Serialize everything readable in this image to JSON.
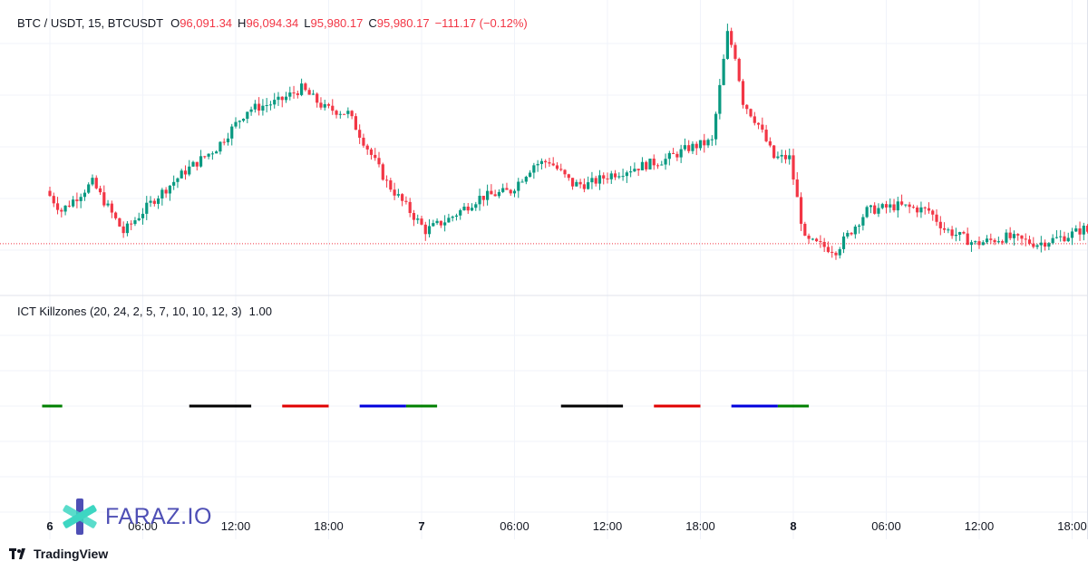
{
  "symbol_line": "BTC / USDT, 15, BTCUSDT",
  "ohlc": {
    "o_label": "O",
    "o": "96,091.34",
    "h_label": "H",
    "h": "96,094.34",
    "l_label": "L",
    "l": "95,980.17",
    "c_label": "C",
    "c": "95,980.17",
    "change": "−111.17 (−0.12%)"
  },
  "indicator": {
    "label": "ICT Killzones (20, 24, 2, 5, 7, 10, 10, 12, 3)",
    "value": "1.00"
  },
  "watermark": "FARAZ.IO",
  "branding": "TradingView",
  "colors": {
    "up": "#089981",
    "down": "#f23645",
    "grid": "#f0f3fa",
    "last_price_line": "#f23645"
  },
  "chart_data": [
    {
      "type": "candlestick",
      "interval": "15",
      "x_axis": {
        "labels": [
          {
            "text": "6",
            "bold": true,
            "hour_index": 0
          },
          {
            "text": "06:00",
            "bold": false,
            "hour_index": 6
          },
          {
            "text": "12:00",
            "bold": false,
            "hour_index": 12
          },
          {
            "text": "18:00",
            "bold": false,
            "hour_index": 18
          },
          {
            "text": "7",
            "bold": true,
            "hour_index": 24
          },
          {
            "text": "06:00",
            "bold": false,
            "hour_index": 30
          },
          {
            "text": "12:00",
            "bold": false,
            "hour_index": 36
          },
          {
            "text": "18:00",
            "bold": false,
            "hour_index": 42
          },
          {
            "text": "8",
            "bold": true,
            "hour_index": 48
          },
          {
            "text": "06:00",
            "bold": false,
            "hour_index": 54
          },
          {
            "text": "12:00",
            "bold": false,
            "hour_index": 60
          },
          {
            "text": "18:00",
            "bold": false,
            "hour_index": 66
          }
        ]
      },
      "y_range": [
        95700,
        97400
      ],
      "last_price": 95980.17,
      "path_keypoints": [
        [
          0,
          96300
        ],
        [
          1,
          96180
        ],
        [
          3,
          96350
        ],
        [
          5,
          96050
        ],
        [
          7,
          96250
        ],
        [
          9,
          96420
        ],
        [
          11,
          96560
        ],
        [
          13,
          96790
        ],
        [
          15,
          96840
        ],
        [
          16.5,
          96920
        ],
        [
          18,
          96800
        ],
        [
          19.5,
          96770
        ],
        [
          22,
          96350
        ],
        [
          24.5,
          96060
        ],
        [
          26,
          96130
        ],
        [
          28,
          96260
        ],
        [
          30,
          96300
        ],
        [
          31.5,
          96460
        ],
        [
          32.5,
          96480
        ],
        [
          34,
          96340
        ],
        [
          35,
          96340
        ],
        [
          36.5,
          96400
        ],
        [
          38,
          96440
        ],
        [
          40,
          96490
        ],
        [
          41.5,
          96560
        ],
        [
          43,
          96600
        ],
        [
          44,
          97250
        ],
        [
          44.5,
          97120
        ],
        [
          45,
          96840
        ],
        [
          46,
          96700
        ],
        [
          47,
          96500
        ],
        [
          48,
          96500
        ],
        [
          49,
          96000
        ],
        [
          51,
          95940
        ],
        [
          53,
          96180
        ],
        [
          55,
          96210
        ],
        [
          57,
          96180
        ],
        [
          58,
          96070
        ],
        [
          60,
          95980
        ],
        [
          62,
          96020
        ],
        [
          64,
          95980
        ],
        [
          66,
          96030
        ],
        [
          67,
          96070
        ],
        [
          68.5,
          95980
        ]
      ]
    },
    {
      "type": "line-segments",
      "name": "ICT Killzones",
      "level": 1.0,
      "segments": [
        {
          "start_hour": -0.5,
          "end_hour": 0.8,
          "color": "#008000"
        },
        {
          "start_hour": 9,
          "end_hour": 13,
          "color": "#000000"
        },
        {
          "start_hour": 15,
          "end_hour": 18,
          "color": "#e00000"
        },
        {
          "start_hour": 20,
          "end_hour": 23,
          "color": "#0000dd"
        },
        {
          "start_hour": 23,
          "end_hour": 25,
          "color": "#008000"
        },
        {
          "start_hour": 33,
          "end_hour": 37,
          "color": "#000000"
        },
        {
          "start_hour": 39,
          "end_hour": 42,
          "color": "#e00000"
        },
        {
          "start_hour": 44,
          "end_hour": 47,
          "color": "#0000dd"
        },
        {
          "start_hour": 47,
          "end_hour": 49,
          "color": "#008000"
        }
      ]
    }
  ]
}
